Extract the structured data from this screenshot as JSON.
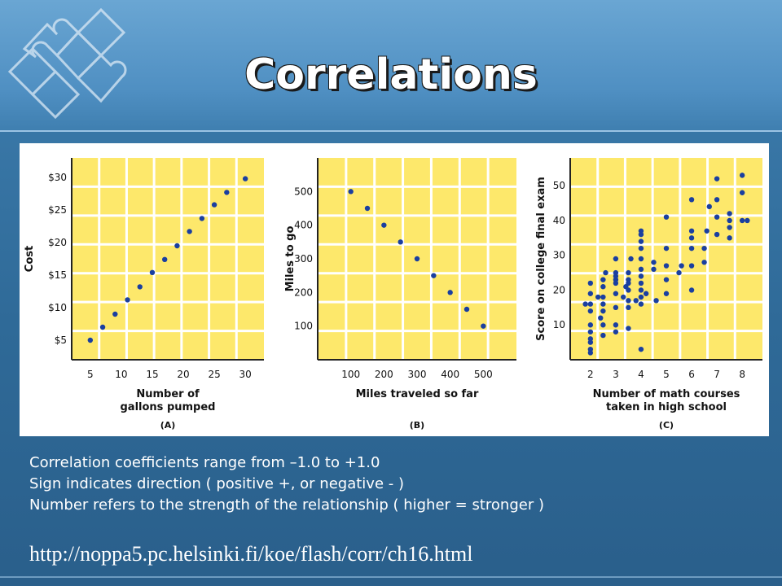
{
  "slide": {
    "title": "Correlations",
    "bullets": [
      "Correlation coefficients range from –1.0 to +1.0",
      "Sign indicates direction ( positive +, or negative - )",
      "Number refers to the strength of the relationship ( higher = stronger )"
    ],
    "url": "http://noppa5.pc.helsinki.fi/koe/flash/corr/ch16.html"
  },
  "colors": {
    "plot_bg": "#fde86b",
    "point": "#1a3fa0",
    "grid": "#ffffff"
  },
  "chart_data": [
    {
      "type": "scatter",
      "panel_label": "(A)",
      "xlabel": "Number of\ngallons pumped",
      "ylabel": "Cost",
      "xticks": [
        5,
        10,
        15,
        20,
        25,
        30
      ],
      "yticks": [
        "$5",
        "$10",
        "$15",
        "$20",
        "$25",
        "$30"
      ],
      "ytick_values": [
        5,
        10,
        15,
        20,
        25,
        30
      ],
      "xlim": [
        2,
        33
      ],
      "ylim": [
        2,
        33
      ],
      "points": [
        [
          5,
          5
        ],
        [
          7,
          7
        ],
        [
          9,
          9
        ],
        [
          11,
          11.2
        ],
        [
          13,
          13.2
        ],
        [
          15,
          15.4
        ],
        [
          17,
          17.4
        ],
        [
          19,
          19.5
        ],
        [
          21,
          21.7
        ],
        [
          23,
          23.7
        ],
        [
          25,
          25.8
        ],
        [
          27,
          27.7
        ],
        [
          30,
          29.8
        ]
      ]
    },
    {
      "type": "scatter",
      "panel_label": "(B)",
      "xlabel": "Miles traveled so far",
      "ylabel": "Miles to go",
      "xticks": [
        100,
        200,
        300,
        400,
        500
      ],
      "yticks": [
        "100",
        "200",
        "300",
        "400",
        "500"
      ],
      "ytick_values": [
        100,
        200,
        300,
        400,
        500
      ],
      "xlim": [
        0,
        600
      ],
      "ylim": [
        0,
        600
      ],
      "points": [
        [
          100,
          500
        ],
        [
          150,
          450
        ],
        [
          200,
          400
        ],
        [
          250,
          350
        ],
        [
          300,
          300
        ],
        [
          350,
          250
        ],
        [
          400,
          200
        ],
        [
          450,
          150
        ],
        [
          500,
          100
        ]
      ]
    },
    {
      "type": "scatter",
      "panel_label": "(C)",
      "xlabel": "Number of math courses\ntaken in high school",
      "ylabel": "Score on college final exam",
      "xticks": [
        2,
        3,
        4,
        5,
        6,
        7,
        8
      ],
      "yticks": [
        "10",
        "20",
        "30",
        "40",
        "50"
      ],
      "ytick_values": [
        10,
        20,
        30,
        40,
        50
      ],
      "xlim": [
        1.2,
        8.8
      ],
      "ylim": [
        0,
        58
      ],
      "points": [
        [
          1.8,
          16
        ],
        [
          2,
          2
        ],
        [
          2,
          3
        ],
        [
          2,
          5
        ],
        [
          2,
          6
        ],
        [
          2,
          8
        ],
        [
          2,
          10
        ],
        [
          2,
          14
        ],
        [
          2,
          16
        ],
        [
          2,
          19
        ],
        [
          2,
          22
        ],
        [
          2.3,
          18
        ],
        [
          2.4,
          12
        ],
        [
          2.5,
          7
        ],
        [
          2.5,
          10
        ],
        [
          2.5,
          14
        ],
        [
          2.5,
          16
        ],
        [
          2.5,
          18
        ],
        [
          2.5,
          21
        ],
        [
          2.5,
          23
        ],
        [
          2.6,
          25
        ],
        [
          3,
          8
        ],
        [
          3,
          10
        ],
        [
          3,
          15
        ],
        [
          3,
          19
        ],
        [
          3,
          22
        ],
        [
          3,
          23
        ],
        [
          3,
          24
        ],
        [
          3,
          25
        ],
        [
          3,
          29
        ],
        [
          3.3,
          18
        ],
        [
          3.4,
          21
        ],
        [
          3.5,
          9
        ],
        [
          3.5,
          15
        ],
        [
          3.5,
          17
        ],
        [
          3.5,
          20
        ],
        [
          3.5,
          22
        ],
        [
          3.5,
          23
        ],
        [
          3.5,
          25
        ],
        [
          3.6,
          29
        ],
        [
          3.8,
          17
        ],
        [
          4,
          3
        ],
        [
          4,
          16
        ],
        [
          4,
          18
        ],
        [
          4,
          20
        ],
        [
          4,
          22
        ],
        [
          4,
          24
        ],
        [
          4,
          26
        ],
        [
          4,
          29
        ],
        [
          4,
          32
        ],
        [
          4,
          34
        ],
        [
          4,
          36
        ],
        [
          4,
          37
        ],
        [
          4.2,
          19
        ],
        [
          4.5,
          26
        ],
        [
          4.5,
          28
        ],
        [
          4.6,
          17
        ],
        [
          5,
          19
        ],
        [
          5,
          23
        ],
        [
          5,
          27
        ],
        [
          5,
          32
        ],
        [
          5,
          41
        ],
        [
          5.5,
          25
        ],
        [
          5.6,
          27
        ],
        [
          6,
          20
        ],
        [
          6,
          27
        ],
        [
          6,
          32
        ],
        [
          6,
          35
        ],
        [
          6,
          37
        ],
        [
          6,
          46
        ],
        [
          6.5,
          28
        ],
        [
          6.5,
          32
        ],
        [
          6.6,
          37
        ],
        [
          6.7,
          44
        ],
        [
          7,
          36
        ],
        [
          7,
          41
        ],
        [
          7,
          46
        ],
        [
          7,
          52
        ],
        [
          7.5,
          35
        ],
        [
          7.5,
          38
        ],
        [
          7.5,
          40
        ],
        [
          7.5,
          42
        ],
        [
          8,
          40
        ],
        [
          8,
          48
        ],
        [
          8,
          53
        ],
        [
          8.2,
          40
        ]
      ]
    }
  ]
}
